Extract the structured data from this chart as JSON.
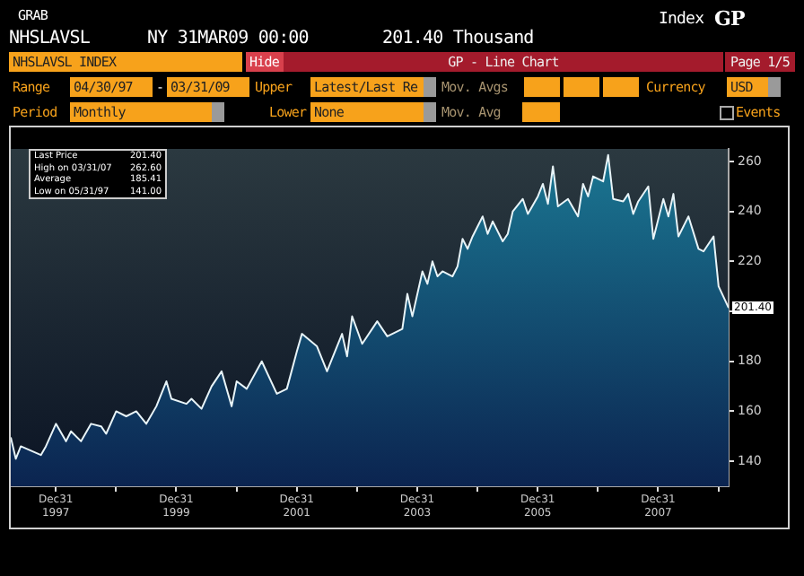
{
  "chart_data": {
    "type": "area",
    "x": [
      "1997-04",
      "1997-05",
      "1997-06",
      "1997-10",
      "1997-11",
      "1998-01",
      "1998-03",
      "1998-04",
      "1998-06",
      "1998-08",
      "1998-10",
      "1998-11",
      "1999-01",
      "1999-03",
      "1999-05",
      "1999-07",
      "1999-09",
      "1999-11",
      "1999-12",
      "2000-03",
      "2000-04",
      "2000-06",
      "2000-08",
      "2000-10",
      "2000-12",
      "2001-01",
      "2001-03",
      "2001-06",
      "2001-09",
      "2001-11",
      "2002-01",
      "2002-02",
      "2002-05",
      "2002-07",
      "2002-08",
      "2002-10",
      "2002-11",
      "2002-12",
      "2003-02",
      "2003-05",
      "2003-07",
      "2003-10",
      "2003-11",
      "2003-12",
      "2004-02",
      "2004-03",
      "2004-04",
      "2004-05",
      "2004-06",
      "2004-08",
      "2004-09",
      "2004-10",
      "2004-11",
      "2004-12",
      "2005-02",
      "2005-03",
      "2005-04",
      "2005-06",
      "2005-07",
      "2005-08",
      "2005-10",
      "2005-11",
      "2006-01",
      "2006-02",
      "2006-03",
      "2006-04",
      "2006-05",
      "2006-07",
      "2006-09",
      "2006-10",
      "2006-11",
      "2006-12",
      "2007-02",
      "2007-03",
      "2007-04",
      "2007-06",
      "2007-07",
      "2007-08",
      "2007-09",
      "2007-11",
      "2007-12",
      "2008-02",
      "2008-03",
      "2008-04",
      "2008-05",
      "2008-07",
      "2008-09",
      "2008-10",
      "2008-12",
      "2009-01",
      "2009-03"
    ],
    "series": [
      {
        "color": "#1b7893",
        "values": [
          149.6,
          141.0,
          146,
          142.5,
          146,
          155,
          148,
          152,
          148,
          155,
          154,
          151,
          160,
          158,
          160,
          155,
          162,
          172,
          165,
          163,
          165,
          161,
          170,
          176,
          162,
          172,
          169,
          180,
          167,
          169,
          184,
          191,
          186,
          176,
          181,
          191,
          182,
          198,
          187,
          196,
          190,
          193,
          207,
          198,
          216,
          211,
          220,
          214,
          216,
          214,
          218,
          229,
          225,
          230,
          238,
          231,
          236,
          228,
          231,
          240,
          245,
          239,
          246,
          251,
          243,
          258,
          242,
          245,
          238,
          251,
          246,
          254,
          252,
          262.6,
          245,
          244,
          247,
          239,
          244,
          250,
          229,
          245,
          238,
          247,
          230,
          238,
          225,
          224,
          230,
          210,
          201.4
        ]
      }
    ],
    "xlim": [
      "1997-04",
      "2009-03"
    ],
    "xticks": [
      {
        "value": "1997-12-31",
        "label": "Dec31 1997"
      },
      {
        "value": "1998-12-31",
        "label": null
      },
      {
        "value": "1999-12-31",
        "label": "Dec31 1999"
      },
      {
        "value": "2000-12-31",
        "label": null
      },
      {
        "value": "2001-12-31",
        "label": "Dec31 2001"
      },
      {
        "value": "2002-12-31",
        "label": null
      },
      {
        "value": "2003-12-31",
        "label": "Dec31 2003"
      },
      {
        "value": "2004-12-31",
        "label": null
      },
      {
        "value": "2005-12-31",
        "label": "Dec31 2005"
      },
      {
        "value": "2006-12-31",
        "label": null
      },
      {
        "value": "2007-12-31",
        "label": "Dec31 2007"
      },
      {
        "value": "2008-12-31",
        "label": null
      }
    ],
    "ylim": [
      130,
      265
    ],
    "yticks": [
      140,
      160,
      180,
      {
        "value": 200,
        "label": null
      },
      220,
      240,
      260
    ],
    "grid": false,
    "legend": false,
    "annotations": [
      "GRAB",
      "NHSLAVSL",
      "NY 31MAR09 00:00",
      "201.40 Thousand",
      "Index",
      "GP",
      "NHSLAVSL INDEX",
      "Hide",
      "GP - Line Chart",
      "Page 1/5",
      "Range",
      "04/30/97",
      "-",
      "03/31/09",
      "Upper",
      "Latest/Last Re",
      "Mov. Avgs",
      "Currency",
      "USD",
      "Period",
      "Monthly",
      "Lower",
      "None",
      "Mov. Avg",
      "Events",
      "Last Price 201.40",
      "High on 03/31/07 262.60",
      "Average 185.41",
      "Low on 05/31/97 141.00",
      {
        "text": "201.40",
        "x": "2009-03",
        "y": 201.4
      }
    ]
  }
}
